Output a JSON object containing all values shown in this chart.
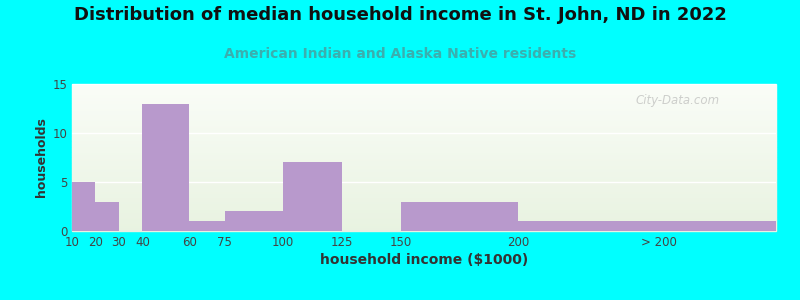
{
  "title": "Distribution of median household income in St. John, ND in 2022",
  "subtitle": "American Indian and Alaska Native residents",
  "xlabel": "household income ($1000)",
  "ylabel": "households",
  "tick_labels": [
    "10",
    "20",
    "30",
    "40",
    "60",
    "75",
    "100",
    "125",
    "150",
    "200",
    "> 200"
  ],
  "tick_positions": [
    10,
    20,
    30,
    40,
    60,
    75,
    100,
    125,
    150,
    200,
    260
  ],
  "bin_edges": [
    10,
    20,
    30,
    40,
    60,
    75,
    100,
    125,
    150,
    200,
    260,
    310
  ],
  "bar_values": [
    5,
    3,
    0,
    13,
    1,
    2,
    7,
    0,
    3,
    1,
    1
  ],
  "bar_color": "#b899cc",
  "bar_edge_color": "#b899cc",
  "outer_bg_color": "#00ffff",
  "ylim": [
    0,
    15
  ],
  "yticks": [
    0,
    5,
    10,
    15
  ],
  "title_fontsize": 13,
  "subtitle_fontsize": 10,
  "axis_label_fontsize": 9,
  "tick_fontsize": 8.5,
  "watermark_text": "City-Data.com",
  "grid_color": "#ffffff",
  "subtitle_color": "#3aafaf"
}
